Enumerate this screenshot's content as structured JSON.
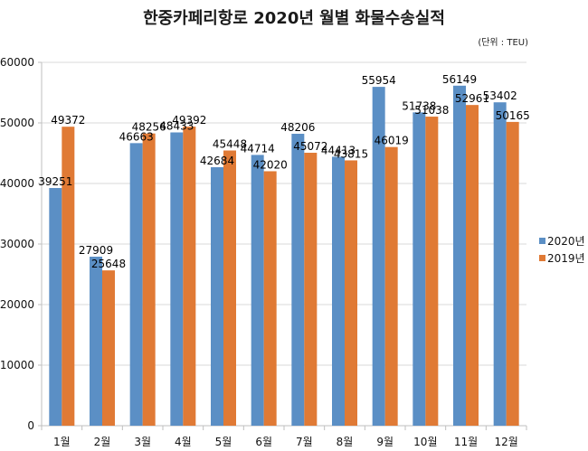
{
  "chart_data": {
    "type": "bar",
    "title": "한중카페리항로 2020년 월별 화물수송실적",
    "unit_note": "(단위 : TEU)",
    "xlabel": "",
    "ylabel": "",
    "ylim": [
      0,
      60000
    ],
    "yticks": [
      0,
      10000,
      20000,
      30000,
      40000,
      50000,
      60000
    ],
    "ytick_labels": [
      "0",
      "10000",
      "20000",
      "30000",
      "40000",
      "50000",
      "60000"
    ],
    "grid": true,
    "legend_position": "right",
    "categories": [
      "1월",
      "2월",
      "3월",
      "4월",
      "5월",
      "6월",
      "7월",
      "8월",
      "9월",
      "10월",
      "11월",
      "12월"
    ],
    "series": [
      {
        "name": "2020년",
        "color": "#5b8fc5",
        "values": [
          39251,
          27909,
          46663,
          48433,
          42684,
          44714,
          48206,
          44413,
          55954,
          51738,
          56149,
          53402
        ]
      },
      {
        "name": "2019년",
        "color": "#e07a35",
        "values": [
          49372,
          25648,
          48256,
          49392,
          45448,
          42020,
          45072,
          43815,
          46019,
          51038,
          52961,
          50165
        ]
      }
    ]
  }
}
